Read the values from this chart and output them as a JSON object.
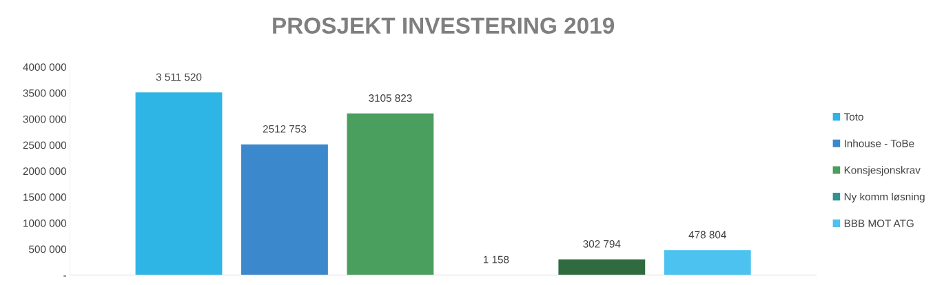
{
  "chart_data": {
    "type": "bar",
    "title": "PROSJEKT INVESTERING 2019",
    "categories": [
      null
    ],
    "series": [
      {
        "name": "Toto",
        "color": "#2fb4e6",
        "values": [
          3511520
        ],
        "value_labels": [
          "3 511 520"
        ]
      },
      {
        "name": "Inhouse - ToBe",
        "color": "#3c88cc",
        "values": [
          2512753
        ],
        "value_labels": [
          "2512 753"
        ]
      },
      {
        "name": "Konsjesjonskrav",
        "color": "#4a9e5e",
        "values": [
          3105823
        ],
        "value_labels": [
          "3105 823"
        ]
      },
      {
        "name": "Ny komm løsning",
        "color": "#2f9394",
        "values": [
          1158
        ],
        "value_labels": [
          "1 158"
        ]
      },
      {
        "color": "#2f6b3f",
        "values": [
          302794
        ],
        "value_labels": [
          "302 794"
        ]
      },
      {
        "name": "BBB MOT ATG",
        "color": "#4cc2f0",
        "values": [
          478804
        ],
        "value_labels": [
          "478 804"
        ]
      }
    ],
    "ylim": [
      0,
      4000000
    ],
    "yticks": [
      {
        "value": 0,
        "label": "-"
      },
      {
        "value": 500000,
        "label": "500 000"
      },
      {
        "value": 1000000,
        "label": "1000 000"
      },
      {
        "value": 1500000,
        "label": "1500 000"
      },
      {
        "value": 2000000,
        "label": "2000 000"
      },
      {
        "value": 2500000,
        "label": "2500 000"
      },
      {
        "value": 3000000,
        "label": "3000 000"
      },
      {
        "value": 3500000,
        "label": "3500 000"
      },
      {
        "value": 4000000,
        "label": "4000 000"
      }
    ],
    "grid": false,
    "legend": "right"
  }
}
